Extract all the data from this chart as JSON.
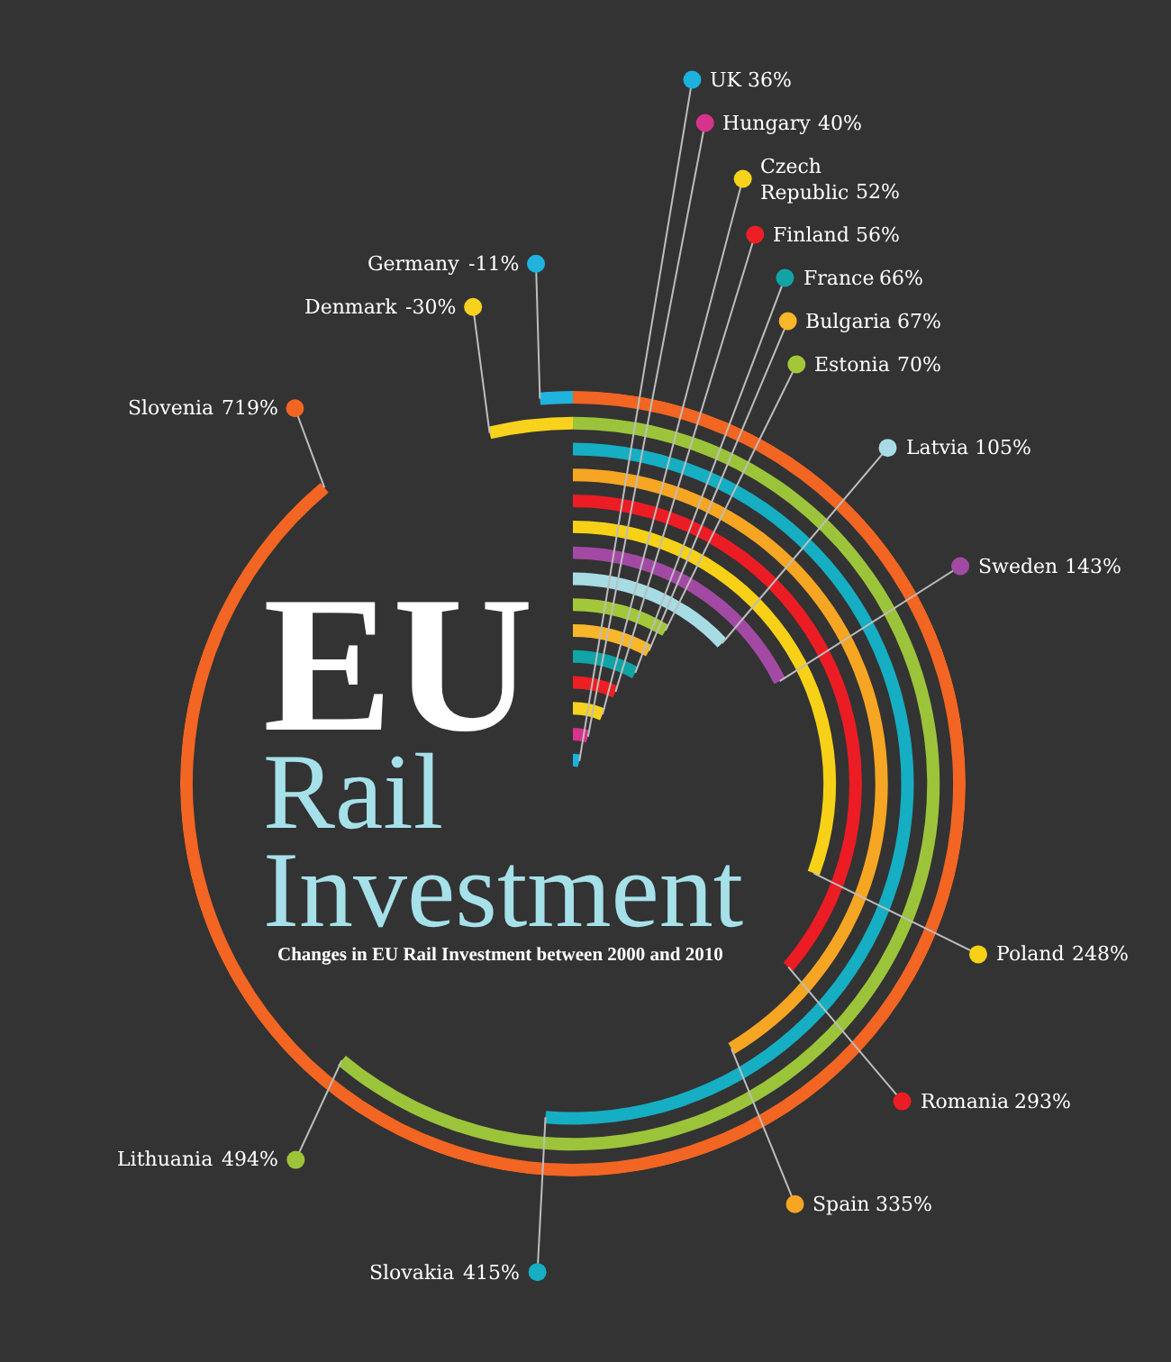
{
  "chart_data": {
    "type": "other",
    "title": "EU Rail Investment",
    "subtitle": "Changes in EU Rail Investment between 2000 and 2010",
    "categories": [
      "Slovenia",
      "Germany",
      "Lithuania",
      "Denmark",
      "Slovakia",
      "Spain",
      "Romania",
      "Poland",
      "Sweden",
      "Latvia",
      "Estonia",
      "Bulgaria",
      "France",
      "Finland",
      "Czech Republic",
      "Hungary",
      "UK"
    ],
    "values": [
      719,
      -11,
      494,
      -30,
      415,
      335,
      293,
      248,
      143,
      105,
      70,
      67,
      66,
      56,
      52,
      40,
      36
    ],
    "value_labels": [
      "719%",
      "-11%",
      "494%",
      "-30%",
      "415%",
      "335%",
      "293%",
      "248%",
      "143%",
      "105%",
      "70%",
      "67%",
      "66%",
      "56%",
      "52%",
      "40%",
      "36%"
    ],
    "colors": [
      "#f26522",
      "#1fb3dd",
      "#9cc43b",
      "#f8d21c",
      "#15aec2",
      "#f6a623",
      "#ec1c24",
      "#f7d117",
      "#a24aa3",
      "#a7dce5",
      "#a2c83a",
      "#f8b62a",
      "#11a4a6",
      "#ed1f24",
      "#f8d31d",
      "#d7338c",
      "#1cb1df"
    ]
  }
}
